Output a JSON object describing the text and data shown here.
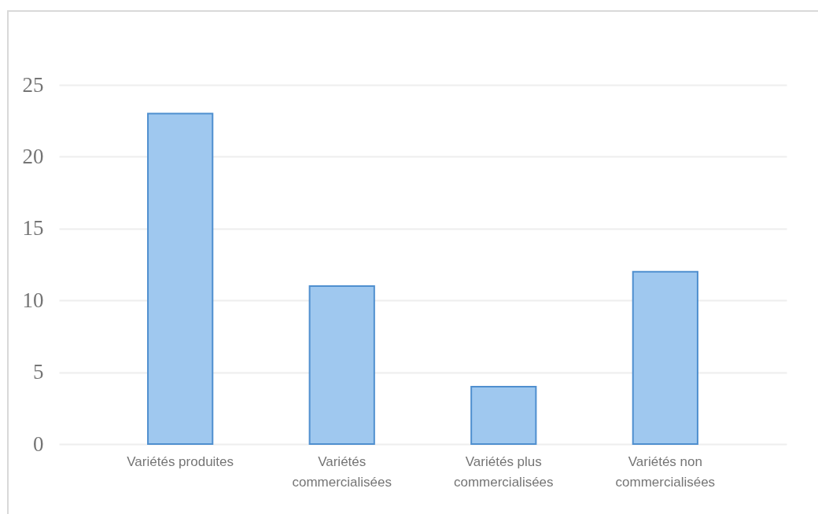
{
  "chart_data": {
    "type": "bar",
    "categories": [
      "Variétés produites",
      "Variétés commercialisées",
      "Variétés plus commercialisées",
      "Variétés non commercialisées"
    ],
    "values": [
      23,
      11,
      4,
      12
    ],
    "color": "#9fc8ef",
    "ylim": [
      0,
      25
    ],
    "yticks": [
      0,
      5,
      10,
      15,
      20,
      25
    ],
    "grid": "y"
  }
}
